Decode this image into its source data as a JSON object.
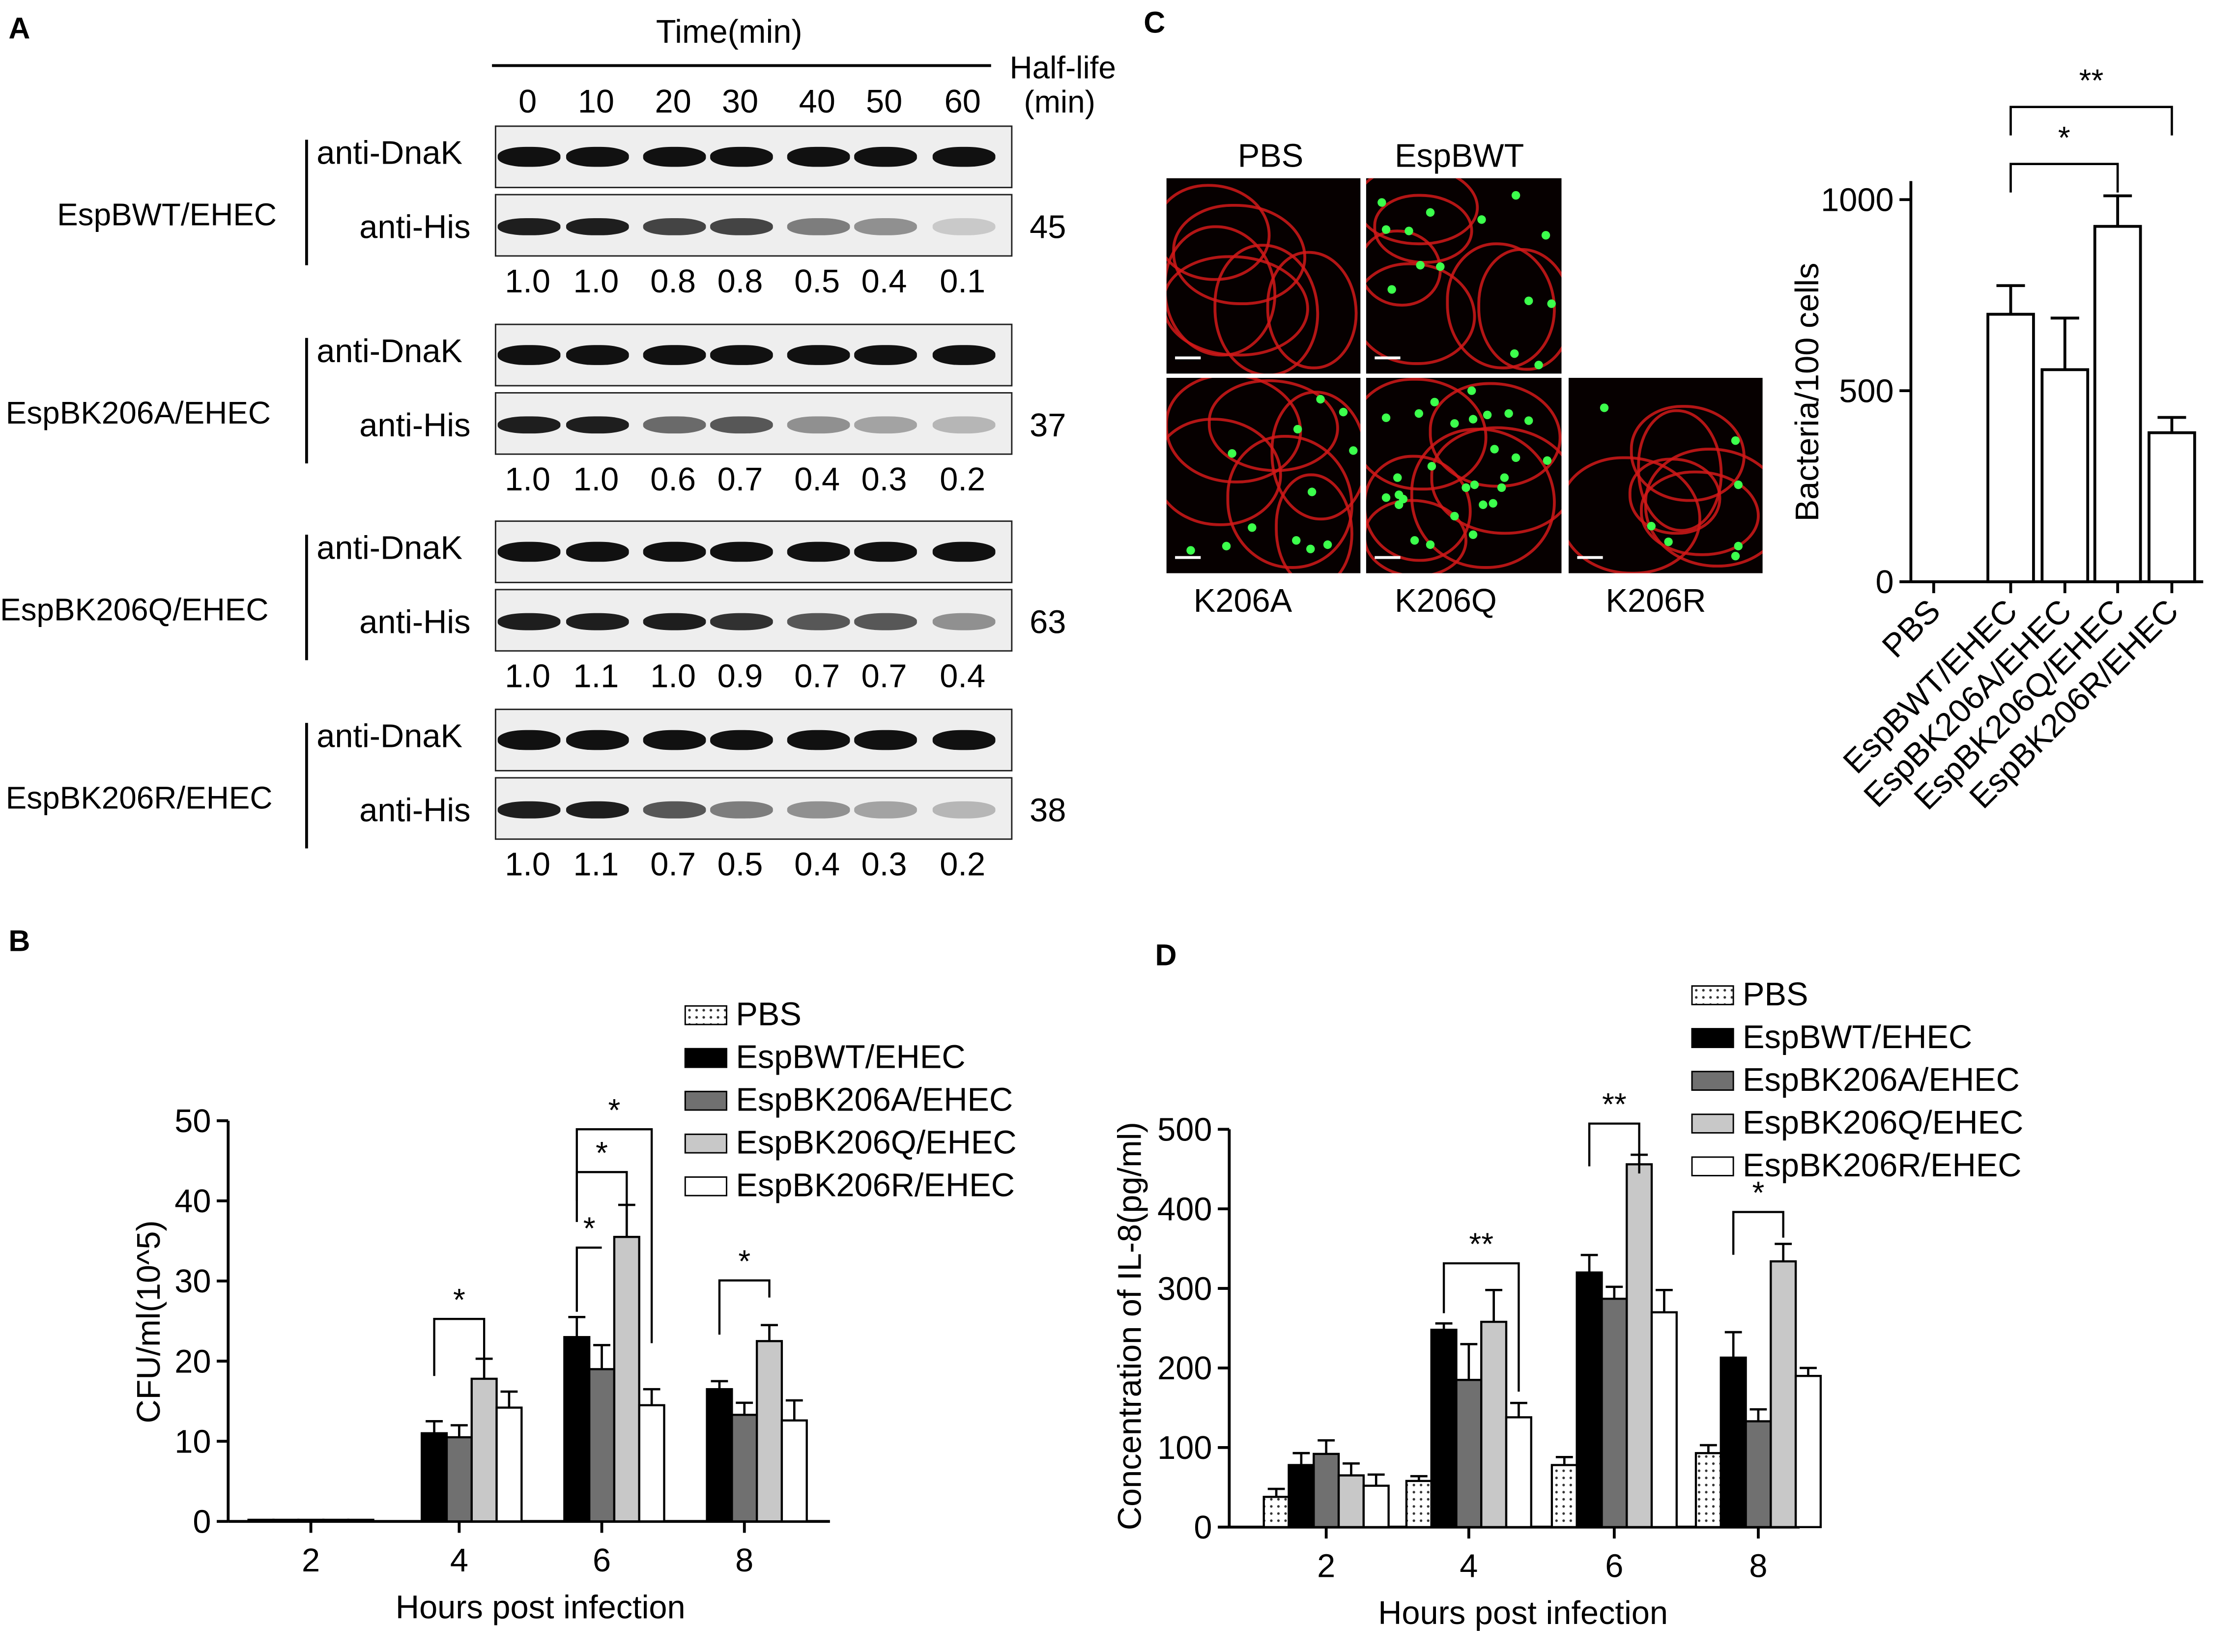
{
  "panel_labels": {
    "a": "A",
    "b": "B",
    "c": "C",
    "d": "D"
  },
  "blots": {
    "time_header": "Time(min)",
    "time_points": [
      "0",
      "10",
      "20",
      "30",
      "40",
      "50",
      "60"
    ],
    "half_life_header": "Half-life",
    "half_life_unit": "(min)",
    "groups": [
      {
        "name": "EspBWT/EHEC",
        "ctrl": "anti-DnaK",
        "target": "anti-His",
        "half_life": "45",
        "ratios": [
          "1.0",
          "1.0",
          "0.8",
          "0.8",
          "0.5",
          "0.4",
          "0.1"
        ]
      },
      {
        "name": "EspBK206A/EHEC",
        "ctrl": "anti-DnaK",
        "target": "anti-His",
        "half_life": "37",
        "ratios": [
          "1.0",
          "1.0",
          "0.6",
          "0.7",
          "0.4",
          "0.3",
          "0.2"
        ]
      },
      {
        "name": "EspBK206Q/EHEC",
        "ctrl": "anti-DnaK",
        "target": "anti-His",
        "half_life": "63",
        "ratios": [
          "1.0",
          "1.1",
          "1.0",
          "0.9",
          "0.7",
          "0.7",
          "0.4"
        ]
      },
      {
        "name": "EspBK206R/EHEC",
        "ctrl": "anti-DnaK",
        "target": "anti-His",
        "half_life": "38",
        "ratios": [
          "1.0",
          "1.1",
          "0.7",
          "0.5",
          "0.4",
          "0.3",
          "0.2"
        ]
      }
    ]
  },
  "micrographs": {
    "labels": [
      "PBS",
      "EspBWT",
      "K206A",
      "K206Q",
      "K206R"
    ]
  },
  "legend": [
    "PBS",
    "EspBWT/EHEC",
    "EspBK206A/EHEC",
    "EspBK206Q/EHEC",
    "EspBK206R/EHEC"
  ],
  "colors": {
    "wt": "#000000",
    "k206a": "#707070",
    "k206q": "#c8c8c8",
    "k206r": "#ffffff",
    "pbs": "#ffffff"
  },
  "chart_data": [
    {
      "panel": "C",
      "type": "bar",
      "ylabel": "Bacteria/100 cells",
      "ylim": [
        0,
        1000
      ],
      "yticks": [
        0,
        500,
        1000
      ],
      "categories": [
        "PBS",
        "EspBWT/EHEC",
        "EspBK206A/EHEC",
        "EspBK206Q/EHEC",
        "EspBK206R/EHEC"
      ],
      "values": [
        0,
        700,
        555,
        930,
        390
      ],
      "errors": [
        0,
        75,
        135,
        80,
        40
      ],
      "significance": [
        {
          "pair": [
            1,
            3
          ],
          "label": "*"
        },
        {
          "pair": [
            1,
            4
          ],
          "label": "**"
        }
      ]
    },
    {
      "panel": "B",
      "type": "bar",
      "xlabel": "Hours post infection",
      "ylabel": "CFU/ml(10^5)",
      "ylim": [
        0,
        50
      ],
      "yticks": [
        0,
        10,
        20,
        30,
        40,
        50
      ],
      "categories": [
        "2",
        "4",
        "6",
        "8"
      ],
      "series": [
        {
          "name": "PBS",
          "values": [
            0.2,
            0,
            0,
            0
          ],
          "errors": [
            0,
            0,
            0,
            0
          ]
        },
        {
          "name": "EspBWT/EHEC",
          "values": [
            0.2,
            11,
            23,
            16.5
          ],
          "errors": [
            0,
            1.5,
            2.5,
            1
          ]
        },
        {
          "name": "EspBK206A/EHEC",
          "values": [
            0.2,
            10.5,
            19,
            13.3
          ],
          "errors": [
            0,
            1.5,
            3,
            1.5
          ]
        },
        {
          "name": "EspBK206Q/EHEC",
          "values": [
            0.2,
            17.8,
            35.5,
            22.5
          ],
          "errors": [
            0,
            2.5,
            4,
            2
          ]
        },
        {
          "name": "EspBK206R/EHEC",
          "values": [
            0.2,
            14.2,
            14.5,
            12.6
          ],
          "errors": [
            0,
            2,
            2,
            2.5
          ]
        }
      ],
      "significance": [
        {
          "group": 1,
          "pair": [
            1,
            3
          ],
          "label": "*"
        },
        {
          "group": 2,
          "pair": [
            1,
            2
          ],
          "label": "*"
        },
        {
          "group": 2,
          "pair": [
            1,
            3
          ],
          "label": "*"
        },
        {
          "group": 2,
          "pair": [
            1,
            4
          ],
          "label": "*"
        },
        {
          "group": 3,
          "pair": [
            1,
            3
          ],
          "label": "*"
        }
      ]
    },
    {
      "panel": "D",
      "type": "bar",
      "xlabel": "Hours post infection",
      "ylabel": "Concentration of IL-8(pg/ml)",
      "ylim": [
        0,
        500
      ],
      "yticks": [
        0,
        100,
        200,
        300,
        400,
        500
      ],
      "categories": [
        "2",
        "4",
        "6",
        "8"
      ],
      "series": [
        {
          "name": "PBS",
          "values": [
            38,
            58,
            78,
            93
          ],
          "errors": [
            10,
            6,
            10,
            10
          ]
        },
        {
          "name": "EspBWT/EHEC",
          "values": [
            78,
            248,
            320,
            213
          ],
          "errors": [
            15,
            8,
            22,
            32
          ]
        },
        {
          "name": "EspBK206A/EHEC",
          "values": [
            92,
            185,
            287,
            133
          ],
          "errors": [
            17,
            45,
            15,
            15
          ]
        },
        {
          "name": "EspBK206Q/EHEC",
          "values": [
            65,
            258,
            456,
            334
          ],
          "errors": [
            15,
            40,
            12,
            22
          ]
        },
        {
          "name": "EspBK206R/EHEC",
          "values": [
            52,
            138,
            270,
            190
          ],
          "errors": [
            14,
            18,
            28,
            10
          ]
        }
      ],
      "significance": [
        {
          "group": 1,
          "pair": [
            1,
            4
          ],
          "label": "**"
        },
        {
          "group": 2,
          "pair": [
            1,
            3
          ],
          "label": "**"
        },
        {
          "group": 3,
          "pair": [
            1,
            3
          ],
          "label": "*"
        }
      ]
    }
  ]
}
